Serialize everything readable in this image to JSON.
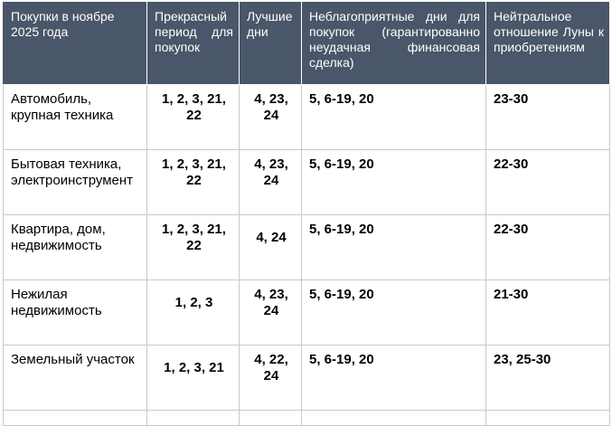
{
  "table": {
    "headers": [
      "Покупки в ноябре 2025 года",
      "Прекрасный период для покупок",
      "Лучшие дни",
      "Неблагоприятные дни для покупок (гарантированно неудачная финансовая сделка)",
      "Нейтральное отношение Луны к приобретениям"
    ],
    "rows": [
      {
        "category": "Автомобиль, крупная техника",
        "excellent": "1, 2, 3, 21, 22",
        "best": "4, 23, 24",
        "unfavorable": "5, 6-19, 20",
        "neutral": "23-30"
      },
      {
        "category": "Бытовая техника, электроинструмент",
        "excellent": "1, 2, 3, 21, 22",
        "best": "4, 23, 24",
        "unfavorable": "5, 6-19, 20",
        "neutral": "22-30"
      },
      {
        "category": "Квартира, дом, недвижимость",
        "excellent": "1, 2, 3, 21, 22",
        "best": "4, 24",
        "unfavorable": "5, 6-19, 20",
        "neutral": "22-30"
      },
      {
        "category": "Нежилая недвижимость",
        "excellent": "1, 2, 3",
        "best": "4, 23, 24",
        "unfavorable": "5, 6-19, 20",
        "neutral": "21-30"
      },
      {
        "category": "Земельный участок",
        "excellent": "1, 2, 3, 21",
        "best": "4, 22, 24",
        "unfavorable": "5, 6-19, 20",
        "neutral": "23, 25-30"
      }
    ]
  },
  "colors": {
    "header_bg": "#4a5669",
    "header_text": "#ffffff",
    "grid": "#c9c9c9"
  }
}
